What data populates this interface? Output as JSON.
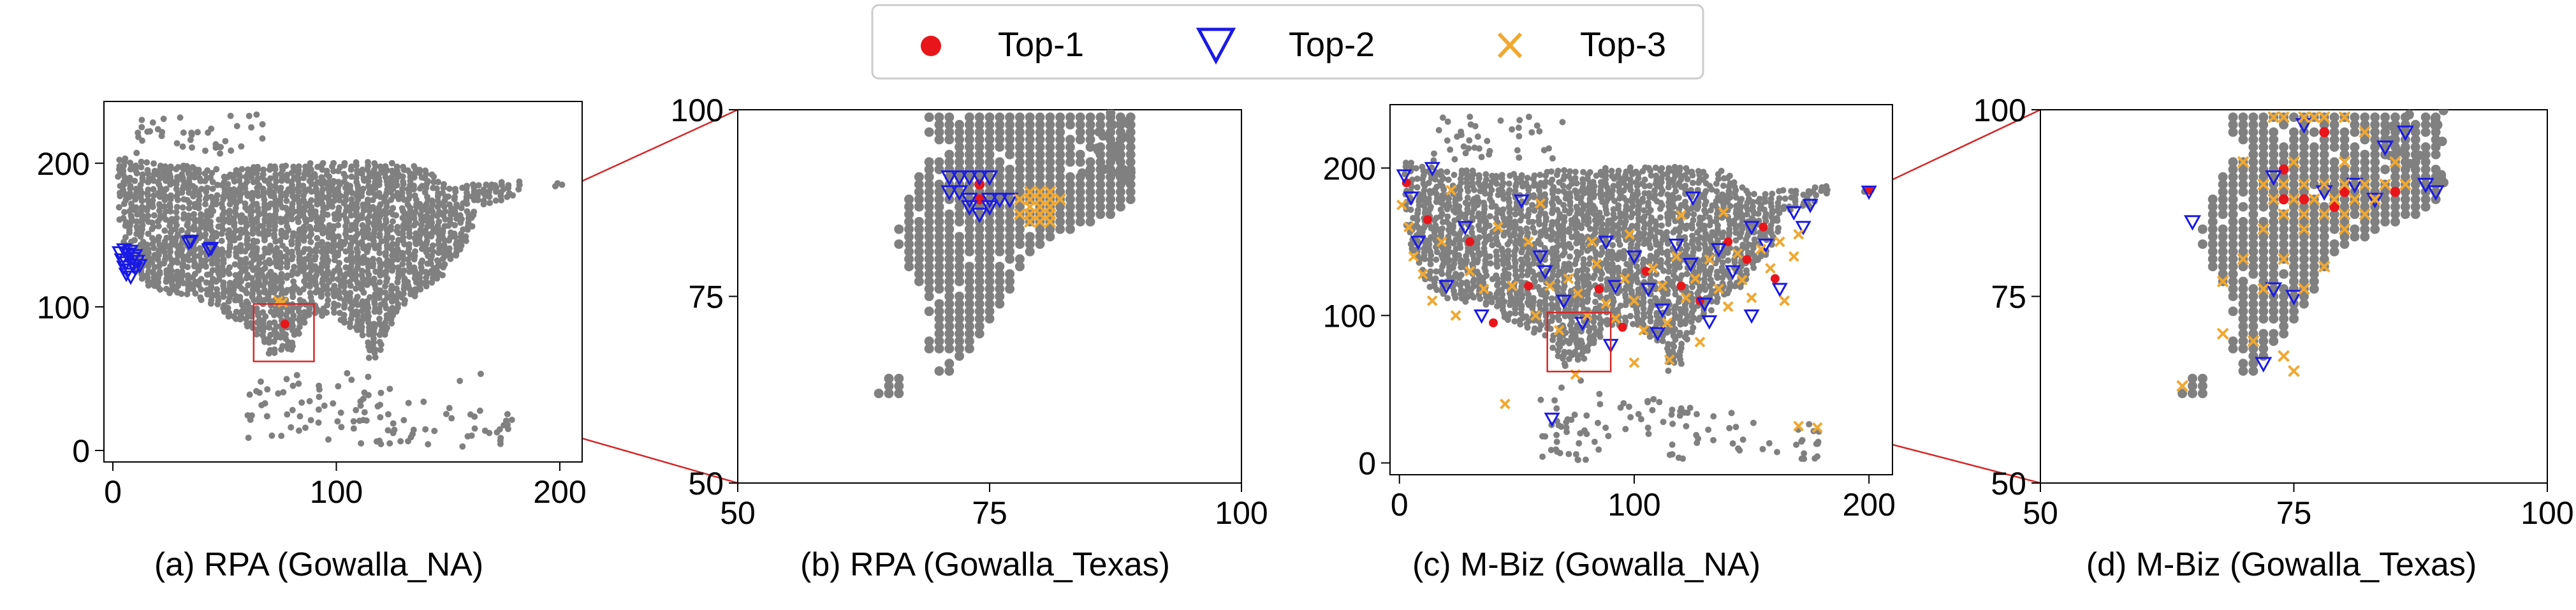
{
  "legend": {
    "entries": [
      {
        "label": "Top-1",
        "marker": "dot-icon",
        "color": "#e8161b"
      },
      {
        "label": "Top-2",
        "marker": "triangle-down-icon",
        "color": "#1a1ae6"
      },
      {
        "label": "Top-3",
        "marker": "x-cross-icon",
        "color": "#f0a830"
      }
    ]
  },
  "colors": {
    "background_points": "#808080",
    "zoom_lines": "#d62728",
    "axes": "#000000"
  },
  "chart_data": [
    {
      "type": "scatter",
      "caption": "(a) RPA (Gowalla_NA)",
      "xlim": [
        -4,
        210
      ],
      "ylim": [
        -8,
        243
      ],
      "xticks": [
        0,
        100,
        200
      ],
      "yticks": [
        0,
        100,
        200
      ],
      "grid": false,
      "zoom_box": {
        "x": [
          63,
          90
        ],
        "y": [
          62,
          102
        ]
      },
      "series": [
        {
          "name": "Top-1",
          "points": [
            [
              77,
              88
            ]
          ]
        },
        {
          "name": "Top-2",
          "points": [
            [
              3,
              138
            ],
            [
              5,
              140
            ],
            [
              7,
              137
            ],
            [
              8,
              139
            ],
            [
              10,
              136
            ],
            [
              4,
              133
            ],
            [
              6,
              131
            ],
            [
              9,
              134
            ],
            [
              11,
              132
            ],
            [
              5,
              128
            ],
            [
              7,
              126
            ],
            [
              9,
              129
            ],
            [
              6,
              123
            ],
            [
              8,
              121
            ],
            [
              10,
              127
            ],
            [
              12,
              129
            ],
            [
              34,
              145
            ],
            [
              35,
              146
            ],
            [
              43,
              140
            ],
            [
              44,
              141
            ]
          ]
        },
        {
          "name": "Top-3",
          "points": [
            [
              74,
              104
            ],
            [
              76,
              103
            ]
          ]
        }
      ]
    },
    {
      "type": "scatter",
      "caption": "(b) RPA (Gowalla_Texas)",
      "xlim": [
        50,
        100
      ],
      "ylim": [
        50,
        100
      ],
      "xticks": [
        50,
        75,
        100
      ],
      "yticks": [
        50,
        75,
        100
      ],
      "grid": false,
      "series": [
        {
          "name": "Top-1",
          "points": [
            [
              74,
              88
            ],
            [
              74,
              90
            ]
          ]
        },
        {
          "name": "Top-2",
          "points": [
            [
              71,
              91
            ],
            [
              72,
              91
            ],
            [
              73,
              91
            ],
            [
              74,
              91
            ],
            [
              75,
              91
            ],
            [
              71,
              89
            ],
            [
              72,
              89
            ],
            [
              73,
              88
            ],
            [
              75,
              88
            ],
            [
              76,
              88
            ],
            [
              77,
              88
            ],
            [
              73,
              87
            ],
            [
              74,
              86
            ],
            [
              75,
              87
            ]
          ]
        },
        {
          "name": "Top-3",
          "points": [
            [
              79,
              89
            ],
            [
              80,
              89
            ],
            [
              81,
              89
            ],
            [
              78,
              88
            ],
            [
              79,
              88
            ],
            [
              80,
              88
            ],
            [
              81,
              88
            ],
            [
              82,
              88
            ],
            [
              79,
              87
            ],
            [
              80,
              87
            ],
            [
              81,
              87
            ],
            [
              78,
              86
            ],
            [
              79,
              86
            ],
            [
              80,
              86
            ],
            [
              81,
              86
            ],
            [
              79,
              85
            ],
            [
              80,
              85
            ],
            [
              81,
              85
            ]
          ]
        }
      ]
    },
    {
      "type": "scatter",
      "caption": "(c) M-Biz (Gowalla_NA)",
      "xlim": [
        -4,
        210
      ],
      "ylim": [
        -8,
        243
      ],
      "xticks": [
        0,
        100,
        200
      ],
      "yticks": [
        0,
        100,
        200
      ],
      "grid": false,
      "zoom_box": {
        "x": [
          63,
          90
        ],
        "y": [
          62,
          102
        ]
      },
      "series": [
        {
          "name": "Top-1",
          "points": [
            [
              3,
              190
            ],
            [
              12,
              165
            ],
            [
              30,
              150
            ],
            [
              55,
              120
            ],
            [
              85,
              118
            ],
            [
              105,
              130
            ],
            [
              120,
              120
            ],
            [
              140,
              150
            ],
            [
              148,
              138
            ],
            [
              160,
              125
            ],
            [
              40,
              95
            ],
            [
              95,
              92
            ],
            [
              128,
              110
            ],
            [
              155,
              160
            ],
            [
              200,
              185
            ]
          ]
        },
        {
          "name": "Top-2",
          "points": [
            [
              2,
              195
            ],
            [
              5,
              180
            ],
            [
              8,
              150
            ],
            [
              14,
              200
            ],
            [
              20,
              120
            ],
            [
              28,
              160
            ],
            [
              35,
              100
            ],
            [
              52,
              178
            ],
            [
              60,
              140
            ],
            [
              62,
              130
            ],
            [
              70,
              110
            ],
            [
              78,
              95
            ],
            [
              88,
              150
            ],
            [
              92,
              120
            ],
            [
              100,
              140
            ],
            [
              106,
              118
            ],
            [
              112,
              104
            ],
            [
              118,
              148
            ],
            [
              124,
              135
            ],
            [
              130,
              108
            ],
            [
              136,
              145
            ],
            [
              142,
              130
            ],
            [
              150,
              160
            ],
            [
              156,
              148
            ],
            [
              162,
              118
            ],
            [
              168,
              170
            ],
            [
              172,
              160
            ],
            [
              175,
              175
            ],
            [
              65,
              30
            ],
            [
              90,
              80
            ],
            [
              110,
              88
            ],
            [
              132,
              96
            ],
            [
              125,
              180
            ],
            [
              150,
              100
            ],
            [
              200,
              184
            ]
          ]
        },
        {
          "name": "Top-3",
          "points": [
            [
              1,
              175
            ],
            [
              4,
              160
            ],
            [
              6,
              140
            ],
            [
              10,
              128
            ],
            [
              14,
              110
            ],
            [
              18,
              150
            ],
            [
              24,
              100
            ],
            [
              30,
              130
            ],
            [
              36,
              118
            ],
            [
              42,
              160
            ],
            [
              48,
              120
            ],
            [
              55,
              150
            ],
            [
              58,
              100
            ],
            [
              64,
              120
            ],
            [
              68,
              90
            ],
            [
              72,
              125
            ],
            [
              76,
              115
            ],
            [
              80,
              100
            ],
            [
              84,
              135
            ],
            [
              88,
              108
            ],
            [
              92,
              98
            ],
            [
              96,
              125
            ],
            [
              100,
              110
            ],
            [
              104,
              90
            ],
            [
              108,
              132
            ],
            [
              112,
              120
            ],
            [
              114,
              95
            ],
            [
              118,
              140
            ],
            [
              122,
              112
            ],
            [
              126,
              125
            ],
            [
              128,
              82
            ],
            [
              132,
              138
            ],
            [
              136,
              118
            ],
            [
              140,
              106
            ],
            [
              144,
              142
            ],
            [
              146,
              124
            ],
            [
              150,
              112
            ],
            [
              154,
              145
            ],
            [
              158,
              132
            ],
            [
              162,
              150
            ],
            [
              164,
              110
            ],
            [
              168,
              140
            ],
            [
              45,
              40
            ],
            [
              75,
              60
            ],
            [
              100,
              68
            ],
            [
              115,
              70
            ],
            [
              170,
              25
            ],
            [
              178,
              24
            ],
            [
              60,
              176
            ],
            [
              82,
              150
            ],
            [
              98,
              155
            ],
            [
              120,
              168
            ],
            [
              138,
              170
            ],
            [
              22,
              185
            ],
            [
              170,
              155
            ]
          ]
        }
      ]
    },
    {
      "type": "scatter",
      "caption": "(d) M-Biz (Gowalla_Texas)",
      "xlim": [
        50,
        100
      ],
      "ylim": [
        50,
        100
      ],
      "xticks": [
        50,
        75,
        100
      ],
      "yticks": [
        50,
        75,
        100
      ],
      "grid": false,
      "series": [
        {
          "name": "Top-1",
          "points": [
            [
              74,
              88
            ],
            [
              76,
              88
            ],
            [
              79,
              87
            ],
            [
              80,
              89
            ],
            [
              85,
              89
            ],
            [
              74,
              92
            ],
            [
              78,
              97
            ]
          ]
        },
        {
          "name": "Top-2",
          "points": [
            [
              65,
              85
            ],
            [
              73,
              91
            ],
            [
              76,
              98
            ],
            [
              78,
              89
            ],
            [
              84,
              95
            ],
            [
              86,
              97
            ],
            [
              89,
              89
            ],
            [
              75,
              75
            ],
            [
              73,
              76
            ],
            [
              72,
              66
            ],
            [
              81,
              90
            ],
            [
              83,
              88
            ],
            [
              88,
              90
            ]
          ]
        },
        {
          "name": "Top-3",
          "points": [
            [
              73,
              99
            ],
            [
              74,
              99
            ],
            [
              76,
              99
            ],
            [
              77,
              99
            ],
            [
              78,
              99
            ],
            [
              80,
              99
            ],
            [
              82,
              97
            ],
            [
              70,
              93
            ],
            [
              75,
              93
            ],
            [
              80,
              93
            ],
            [
              85,
              93
            ],
            [
              72,
              90
            ],
            [
              74,
              90
            ],
            [
              76,
              90
            ],
            [
              78,
              90
            ],
            [
              80,
              90
            ],
            [
              82,
              90
            ],
            [
              84,
              90
            ],
            [
              86,
              90
            ],
            [
              73,
              88
            ],
            [
              75,
              88
            ],
            [
              77,
              88
            ],
            [
              79,
              88
            ],
            [
              81,
              88
            ],
            [
              83,
              88
            ],
            [
              74,
              86
            ],
            [
              76,
              86
            ],
            [
              78,
              86
            ],
            [
              80,
              86
            ],
            [
              82,
              86
            ],
            [
              72,
              84
            ],
            [
              76,
              84
            ],
            [
              80,
              84
            ],
            [
              70,
              80
            ],
            [
              74,
              80
            ],
            [
              78,
              79
            ],
            [
              68,
              77
            ],
            [
              72,
              76
            ],
            [
              76,
              76
            ],
            [
              68,
              70
            ],
            [
              71,
              69
            ],
            [
              74,
              67
            ],
            [
              75,
              65
            ],
            [
              64,
              63
            ]
          ]
        }
      ]
    }
  ]
}
